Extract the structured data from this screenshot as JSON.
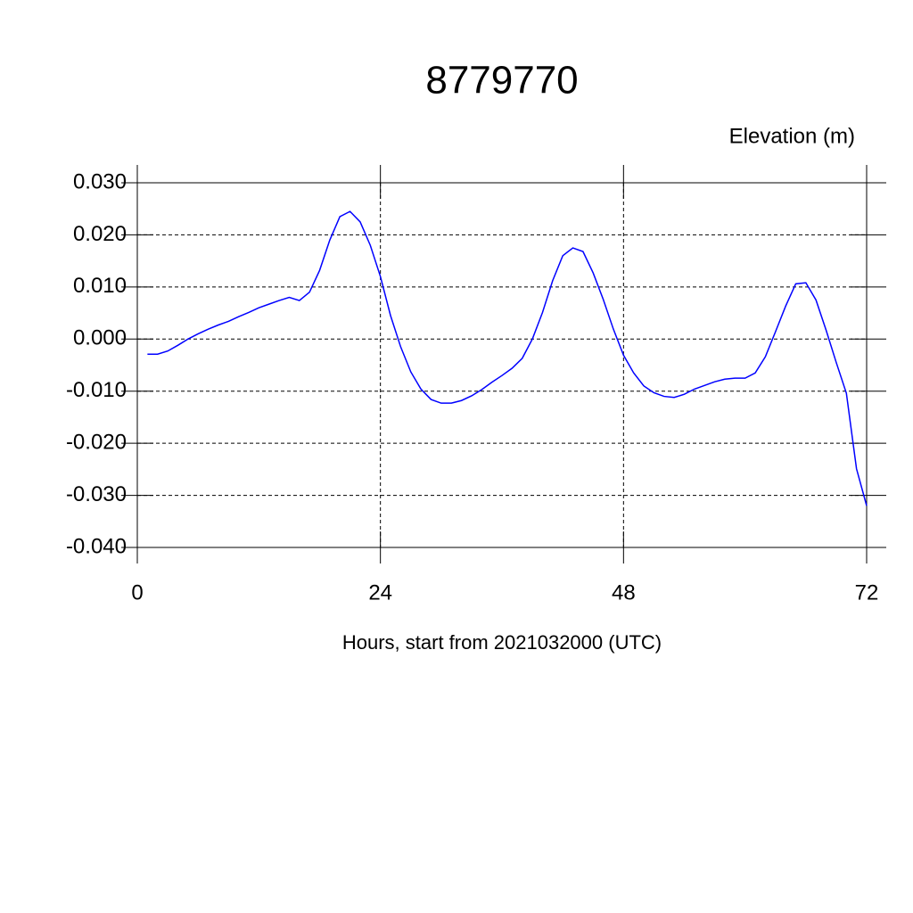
{
  "chart_data": {
    "type": "line",
    "title": "8779770",
    "subtitle": "Elevation (m)",
    "x_label": "Hours, start from 2021032000 (UTC)",
    "x": [
      1,
      2,
      3,
      4,
      5,
      6,
      7,
      8,
      9,
      10,
      11,
      12,
      13,
      14,
      15,
      16,
      17,
      18,
      19,
      20,
      21,
      22,
      23,
      24,
      25,
      26,
      27,
      28,
      29,
      30,
      31,
      32,
      33,
      34,
      35,
      36,
      37,
      38,
      39,
      40,
      41,
      42,
      43,
      44,
      45,
      46,
      47,
      48,
      49,
      50,
      51,
      52,
      53,
      54,
      55,
      56,
      57,
      58,
      59,
      60,
      61,
      62,
      63,
      64,
      65,
      66,
      67,
      68,
      69,
      70,
      71,
      72
    ],
    "series": [
      {
        "color": "#0000ff",
        "values": [
          -0.0029,
          -0.0029,
          -0.0023,
          -0.0012,
          0.0,
          0.001,
          0.0019,
          0.0027,
          0.0034,
          0.0043,
          0.0051,
          0.006,
          0.0067,
          0.0074,
          0.008,
          0.0074,
          0.009,
          0.0132,
          0.019,
          0.0235,
          0.0245,
          0.0225,
          0.018,
          0.012,
          0.0045,
          -0.0015,
          -0.0063,
          -0.0096,
          -0.0116,
          -0.0123,
          -0.0123,
          -0.0118,
          -0.0109,
          -0.0097,
          -0.0083,
          -0.007,
          -0.0056,
          -0.0037,
          0.0,
          0.0051,
          0.0112,
          0.016,
          0.0175,
          0.0168,
          0.0127,
          0.0076,
          0.0019,
          -0.0031,
          -0.0065,
          -0.009,
          -0.0103,
          -0.011,
          -0.0112,
          -0.0106,
          -0.0096,
          -0.0089,
          -0.0082,
          -0.0077,
          -0.0075,
          -0.0075,
          -0.0065,
          -0.0034,
          0.0014,
          0.0063,
          0.0106,
          0.0108,
          0.0075,
          0.0017,
          -0.0045,
          -0.0104,
          -0.0249,
          -0.032
        ]
      }
    ],
    "xlim": [
      0,
      72
    ],
    "xticks": [
      0,
      24,
      48,
      72
    ],
    "ylim": [
      -0.04,
      0.03
    ],
    "yticks": [
      {
        "value": -0.04,
        "label": "-0.040"
      },
      {
        "value": -0.03,
        "label": "-0.030"
      },
      {
        "value": -0.02,
        "label": "-0.020"
      },
      {
        "value": -0.01,
        "label": "-0.010"
      },
      {
        "value": 0,
        "label": "0.000"
      },
      {
        "value": 0.01,
        "label": "0.010"
      },
      {
        "value": 0.02,
        "label": "0.020"
      },
      {
        "value": 0.03,
        "label": "0.030"
      }
    ],
    "grid": true
  }
}
